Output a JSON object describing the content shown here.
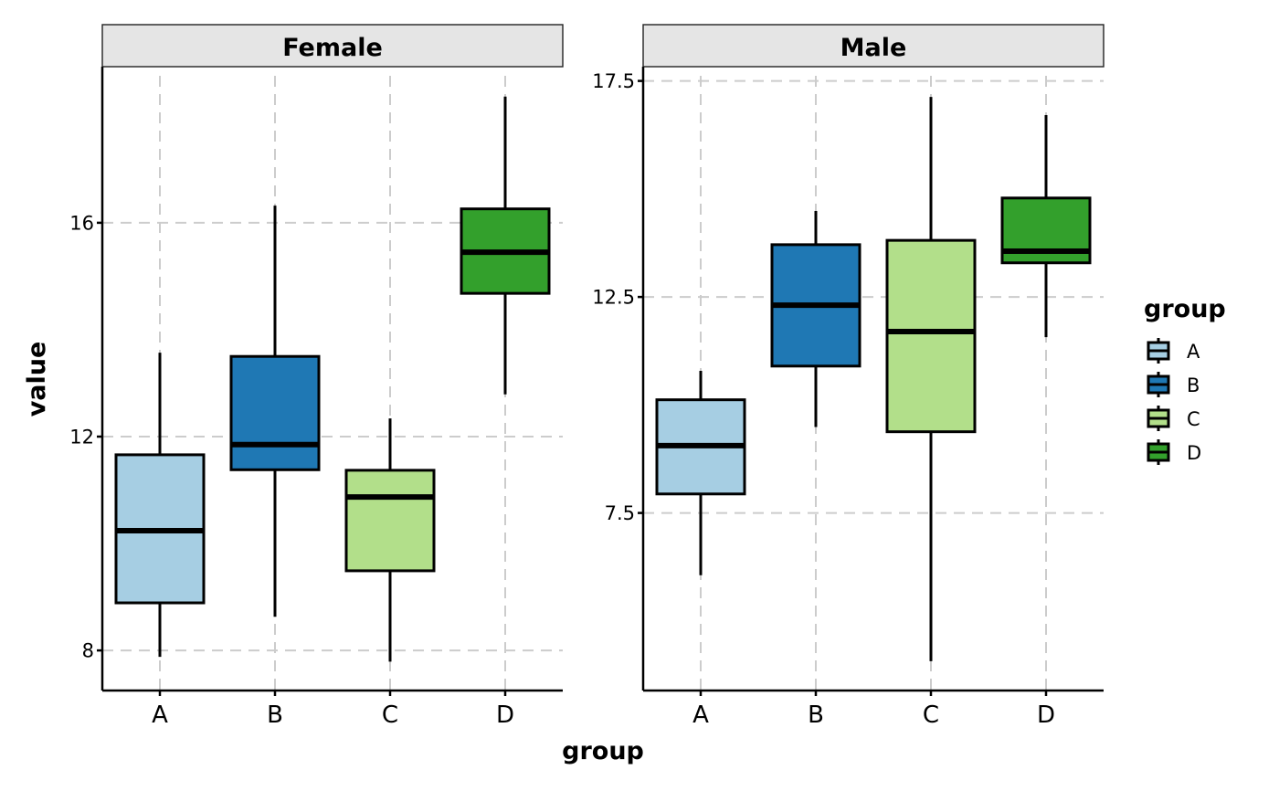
{
  "chart_data": {
    "type": "box",
    "xlabel": "group",
    "ylabel": "value",
    "categories": [
      "A",
      "B",
      "C",
      "D"
    ],
    "colors": {
      "A": "#A6CEE3",
      "B": "#1F78B4",
      "C": "#B2DF8A",
      "D": "#33A02C"
    },
    "grid": "dashed major",
    "legend": {
      "title": "group",
      "position": "right",
      "entries": [
        "A",
        "B",
        "C",
        "D"
      ]
    },
    "facets": [
      {
        "label": "Female",
        "ylim": [
          7.25,
          18.92
        ],
        "yticks": [
          8,
          12,
          16
        ],
        "ytick_labels": [
          "8",
          "12",
          "16"
        ],
        "boxes": [
          {
            "group": "A",
            "whisker_low": 7.88,
            "q1": 8.89,
            "median": 10.24,
            "q3": 11.66,
            "whisker_high": 13.57
          },
          {
            "group": "B",
            "whisker_low": 8.63,
            "q1": 11.38,
            "median": 11.85,
            "q3": 13.5,
            "whisker_high": 16.32
          },
          {
            "group": "C",
            "whisker_low": 7.79,
            "q1": 9.49,
            "median": 10.87,
            "q3": 11.37,
            "whisker_high": 12.34
          },
          {
            "group": "D",
            "whisker_low": 12.79,
            "q1": 14.68,
            "median": 15.45,
            "q3": 16.26,
            "whisker_high": 18.36
          }
        ]
      },
      {
        "label": "Male",
        "ylim": [
          3.39,
          17.83
        ],
        "yticks": [
          7.5,
          12.5,
          17.5
        ],
        "ytick_labels": [
          "7.5",
          "12.5",
          "17.5"
        ],
        "boxes": [
          {
            "group": "A",
            "whisker_low": 6.06,
            "q1": 7.94,
            "median": 9.06,
            "q3": 10.12,
            "whisker_high": 10.79
          },
          {
            "group": "B",
            "whisker_low": 9.49,
            "q1": 10.9,
            "median": 12.31,
            "q3": 13.71,
            "whisker_high": 14.49
          },
          {
            "group": "C",
            "whisker_low": 4.07,
            "q1": 9.38,
            "median": 11.7,
            "q3": 13.81,
            "whisker_high": 17.13
          },
          {
            "group": "D",
            "whisker_low": 11.57,
            "q1": 13.29,
            "median": 13.56,
            "q3": 14.79,
            "whisker_high": 16.71
          }
        ]
      }
    ]
  }
}
